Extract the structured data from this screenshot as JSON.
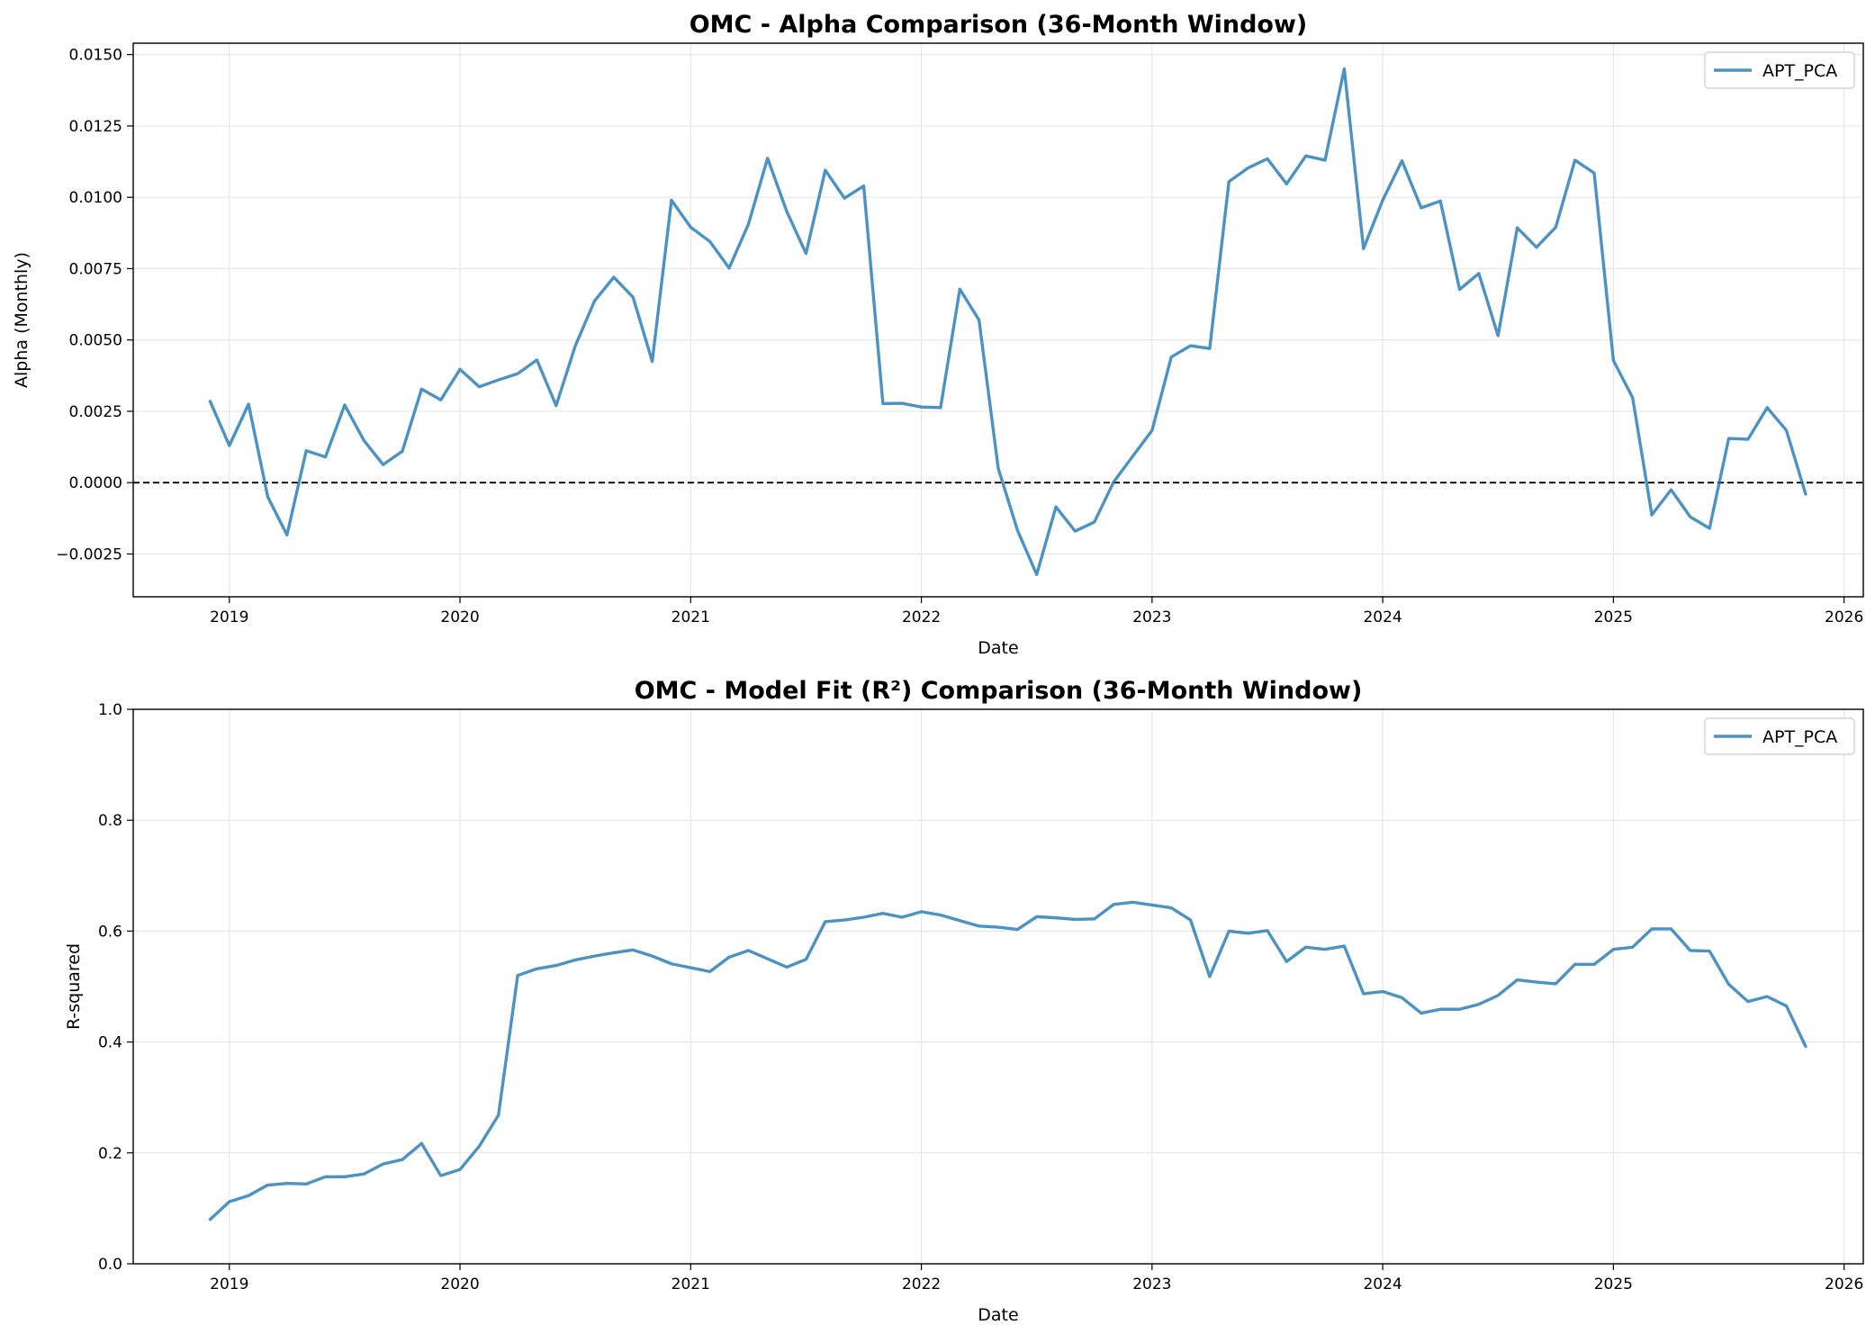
{
  "chart_data": [
    {
      "type": "line",
      "title": "OMC - Alpha Comparison (36-Month Window)",
      "xlabel": "Date",
      "ylabel": "Alpha (Monthly)",
      "x_ticks": [
        "2019",
        "2020",
        "2021",
        "2022",
        "2023",
        "2024",
        "2025",
        "2026"
      ],
      "y_ticks": [
        "0.0150",
        "0.0125",
        "0.0100",
        "0.0075",
        "0.0050",
        "0.0025",
        "0.0000",
        "−0.0025"
      ],
      "xlim": [
        "2018-08",
        "2026-02"
      ],
      "ylim": [
        -0.004,
        0.0154
      ],
      "grid": true,
      "legend": "top-right",
      "reference_line": {
        "y": 0,
        "style": "dashed",
        "color": "#000000"
      },
      "series": [
        {
          "name": "APT_PCA",
          "color": "#1f77b4",
          "x": [
            "2018-12",
            "2019-01",
            "2019-02",
            "2019-03",
            "2019-04",
            "2019-05",
            "2019-06",
            "2019-07",
            "2019-08",
            "2019-09",
            "2019-10",
            "2019-11",
            "2019-12",
            "2020-01",
            "2020-02",
            "2020-03",
            "2020-04",
            "2020-05",
            "2020-06",
            "2020-07",
            "2020-08",
            "2020-09",
            "2020-10",
            "2020-11",
            "2020-12",
            "2021-01",
            "2021-02",
            "2021-03",
            "2021-04",
            "2021-05",
            "2021-06",
            "2021-07",
            "2021-08",
            "2021-09",
            "2021-10",
            "2021-11",
            "2021-12",
            "2022-01",
            "2022-02",
            "2022-03",
            "2022-04",
            "2022-05",
            "2022-06",
            "2022-07",
            "2022-08",
            "2022-09",
            "2022-10",
            "2022-11",
            "2022-12",
            "2023-01",
            "2023-02",
            "2023-03",
            "2023-04",
            "2023-05",
            "2023-06",
            "2023-07",
            "2023-08",
            "2023-09",
            "2023-10",
            "2023-11",
            "2023-12",
            "2024-01",
            "2024-02",
            "2024-03",
            "2024-04",
            "2024-05",
            "2024-06",
            "2024-07",
            "2024-08",
            "2024-09",
            "2024-10",
            "2024-11",
            "2024-12",
            "2025-01",
            "2025-02",
            "2025-03",
            "2025-04",
            "2025-05",
            "2025-06",
            "2025-07",
            "2025-08",
            "2025-09",
            "2025-10",
            "2025-11"
          ],
          "values": [
            0.00285,
            0.0013,
            0.00275,
            -0.0005,
            -0.00183,
            0.00112,
            0.0009,
            0.00272,
            0.00148,
            0.00063,
            0.0011,
            0.00328,
            0.0029,
            0.00397,
            0.00336,
            0.0036,
            0.00382,
            0.0043,
            0.0027,
            0.0048,
            0.00637,
            0.0072,
            0.0065,
            0.00425,
            0.0099,
            0.00895,
            0.00845,
            0.00752,
            0.00905,
            0.01137,
            0.0095,
            0.00803,
            0.01095,
            0.00997,
            0.0104,
            0.00277,
            0.00278,
            0.00265,
            0.00263,
            0.00678,
            0.0057,
            0.0005,
            -0.00167,
            -0.00322,
            -0.00085,
            -0.0017,
            -0.00138,
            2e-05,
            0.00093,
            0.00183,
            0.0044,
            0.0048,
            0.0047,
            0.01055,
            0.01103,
            0.01135,
            0.01047,
            0.01145,
            0.0113,
            0.0145,
            0.0082,
            0.0099,
            0.01128,
            0.00963,
            0.00987,
            0.00677,
            0.00733,
            0.00515,
            0.00893,
            0.00825,
            0.00895,
            0.0113,
            0.01085,
            0.00428,
            0.00298,
            -0.00113,
            -0.00025,
            -0.0012,
            -0.0016,
            0.00155,
            0.00152,
            0.00263,
            0.00183,
            -0.0004
          ]
        }
      ]
    },
    {
      "type": "line",
      "title": "OMC - Model Fit (R²) Comparison (36-Month Window)",
      "xlabel": "Date",
      "ylabel": "R-squared",
      "x_ticks": [
        "2019",
        "2020",
        "2021",
        "2022",
        "2023",
        "2024",
        "2025",
        "2026"
      ],
      "y_ticks": [
        "1.0",
        "0.8",
        "0.6",
        "0.4",
        "0.2",
        "0.0"
      ],
      "xlim": [
        "2018-08",
        "2026-02"
      ],
      "ylim": [
        0.0,
        1.0
      ],
      "grid": true,
      "legend": "top-right",
      "series": [
        {
          "name": "APT_PCA",
          "color": "#1f77b4",
          "x": [
            "2018-12",
            "2019-01",
            "2019-02",
            "2019-03",
            "2019-04",
            "2019-05",
            "2019-06",
            "2019-07",
            "2019-08",
            "2019-09",
            "2019-10",
            "2019-11",
            "2019-12",
            "2020-01",
            "2020-02",
            "2020-03",
            "2020-04",
            "2020-05",
            "2020-06",
            "2020-07",
            "2020-08",
            "2020-09",
            "2020-10",
            "2020-11",
            "2020-12",
            "2021-01",
            "2021-02",
            "2021-03",
            "2021-04",
            "2021-05",
            "2021-06",
            "2021-07",
            "2021-08",
            "2021-09",
            "2021-10",
            "2021-11",
            "2021-12",
            "2022-01",
            "2022-02",
            "2022-03",
            "2022-04",
            "2022-05",
            "2022-06",
            "2022-07",
            "2022-08",
            "2022-09",
            "2022-10",
            "2022-11",
            "2022-12",
            "2023-01",
            "2023-02",
            "2023-03",
            "2023-04",
            "2023-05",
            "2023-06",
            "2023-07",
            "2023-08",
            "2023-09",
            "2023-10",
            "2023-11",
            "2023-12",
            "2024-01",
            "2024-02",
            "2024-03",
            "2024-04",
            "2024-05",
            "2024-06",
            "2024-07",
            "2024-08",
            "2024-09",
            "2024-10",
            "2024-11",
            "2024-12",
            "2025-01",
            "2025-02",
            "2025-03",
            "2025-04",
            "2025-05",
            "2025-06",
            "2025-07",
            "2025-08",
            "2025-09",
            "2025-10",
            "2025-11"
          ],
          "values": [
            0.08,
            0.112,
            0.123,
            0.142,
            0.145,
            0.144,
            0.157,
            0.157,
            0.162,
            0.18,
            0.188,
            0.217,
            0.159,
            0.17,
            0.212,
            0.268,
            0.52,
            0.532,
            0.538,
            0.548,
            0.555,
            0.561,
            0.566,
            0.555,
            0.541,
            0.534,
            0.527,
            0.553,
            0.565,
            0.55,
            0.535,
            0.549,
            0.617,
            0.62,
            0.625,
            0.632,
            0.625,
            0.635,
            0.629,
            0.619,
            0.609,
            0.607,
            0.603,
            0.626,
            0.624,
            0.621,
            0.622,
            0.648,
            0.652,
            0.647,
            0.642,
            0.62,
            0.518,
            0.6,
            0.596,
            0.601,
            0.545,
            0.571,
            0.567,
            0.573,
            0.487,
            0.491,
            0.48,
            0.452,
            0.459,
            0.459,
            0.468,
            0.484,
            0.512,
            0.508,
            0.505,
            0.54,
            0.54,
            0.567,
            0.571,
            0.604,
            0.604,
            0.565,
            0.564,
            0.504,
            0.473,
            0.482,
            0.465,
            0.392
          ]
        }
      ]
    }
  ]
}
